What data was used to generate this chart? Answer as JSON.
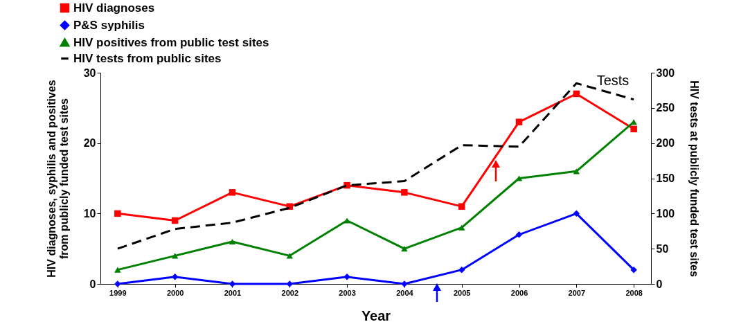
{
  "chart_data": {
    "type": "line",
    "xlabel": "Year",
    "ylabel": "HIV diagnoses, syphilis and positives from publicly funded test sites",
    "y2label": "HIV tests at publicly funded test sites",
    "categories": [
      "1999",
      "2000",
      "2001",
      "2002",
      "2003",
      "2004",
      "2005",
      "2006",
      "2007",
      "2008"
    ],
    "series": [
      {
        "name": "HIV diagnoses",
        "color": "#ff0000",
        "marker": "square",
        "values": [
          10,
          9,
          13,
          11,
          14,
          13,
          11,
          23,
          27,
          22
        ]
      },
      {
        "name": "P&S syphilis",
        "color": "#0000ff",
        "marker": "diamond",
        "values": [
          0,
          1,
          0,
          0,
          1,
          0,
          2,
          7,
          10,
          2
        ]
      },
      {
        "name": "HIV positives from public test sites",
        "color": "#008000",
        "marker": "triangle",
        "values": [
          2,
          4,
          6,
          4,
          9,
          5,
          8,
          15,
          16,
          23
        ]
      },
      {
        "name": "HIV tests from public sites",
        "color": "#000000",
        "axis": "y2",
        "line_style": "dashed",
        "values": [
          50,
          78,
          87,
          108,
          140,
          146,
          197,
          195,
          285,
          262
        ]
      }
    ],
    "ylim": [
      0,
      30
    ],
    "yticks": [
      0,
      10,
      20,
      30
    ],
    "y2lim": [
      0,
      300
    ],
    "y2ticks": [
      0,
      50,
      100,
      150,
      200,
      250,
      300
    ],
    "grid": false,
    "legend": "top left",
    "annotations": [
      "Tests"
    ]
  }
}
